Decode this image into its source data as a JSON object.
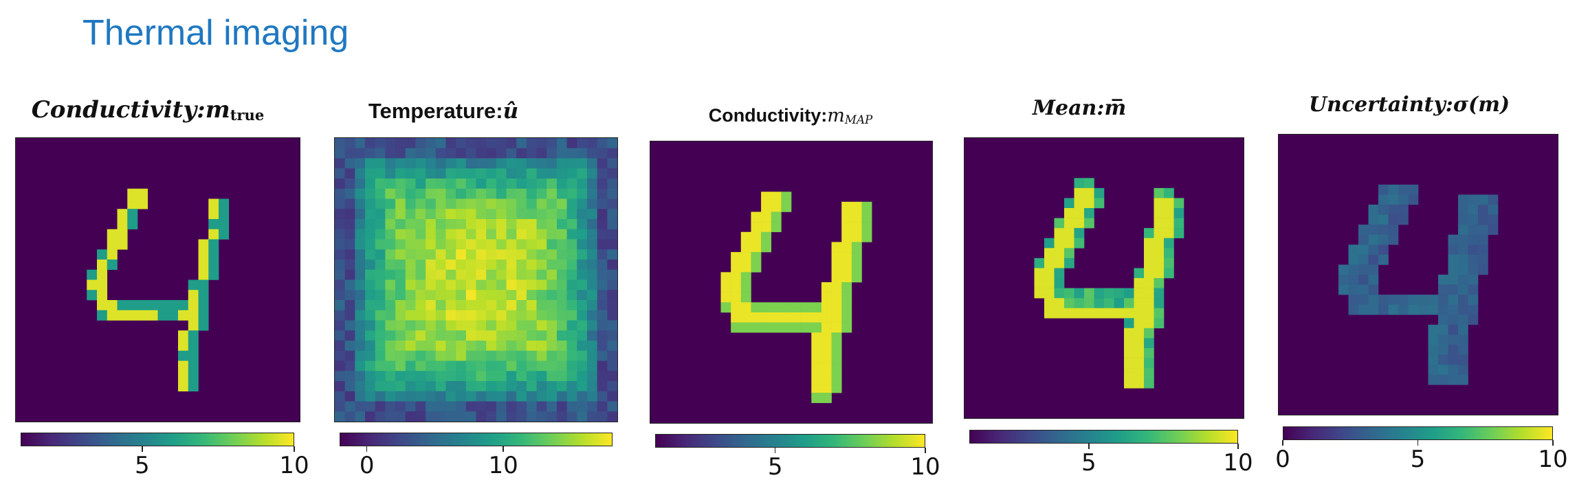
{
  "title": "Thermal imaging",
  "colormap": "viridis",
  "panels": [
    {
      "title_main": "Conductivity",
      "title_sep": ": ",
      "title_var": "m",
      "title_sub": "true",
      "title_sup": "",
      "ticks": [
        "5",
        "10"
      ],
      "tick_values": [
        5,
        10
      ],
      "range": [
        1,
        10
      ],
      "image_kind": "truth"
    },
    {
      "title_main": "Temperature: ",
      "title_sep": "",
      "title_var": "û",
      "title_sub": "",
      "title_sup": "",
      "ticks": [
        "0",
        "10"
      ],
      "tick_values": [
        0,
        10
      ],
      "range": [
        -2,
        18
      ],
      "image_kind": "temperature"
    },
    {
      "title_main": "Conductivity: ",
      "title_sep": "",
      "title_var": "m",
      "title_sub": "",
      "title_sup": "MAP",
      "ticks": [
        "5",
        "10"
      ],
      "tick_values": [
        5,
        10
      ],
      "range": [
        1,
        10
      ],
      "image_kind": "map"
    },
    {
      "title_main": "Mean",
      "title_sep": ":  ",
      "title_var": "m̅",
      "title_sub": "",
      "title_sup": "",
      "ticks": [
        "5",
        "10"
      ],
      "tick_values": [
        5,
        10
      ],
      "range": [
        1,
        10
      ],
      "image_kind": "mean"
    },
    {
      "title_main": "Uncertainty",
      "title_sep": ":  ",
      "title_var": "σ(m)",
      "title_sub": "",
      "title_sup": "",
      "ticks": [
        "0",
        "5",
        "10"
      ],
      "tick_values": [
        0,
        5,
        10
      ],
      "range": [
        0,
        10
      ],
      "image_kind": "uncertainty"
    }
  ]
}
